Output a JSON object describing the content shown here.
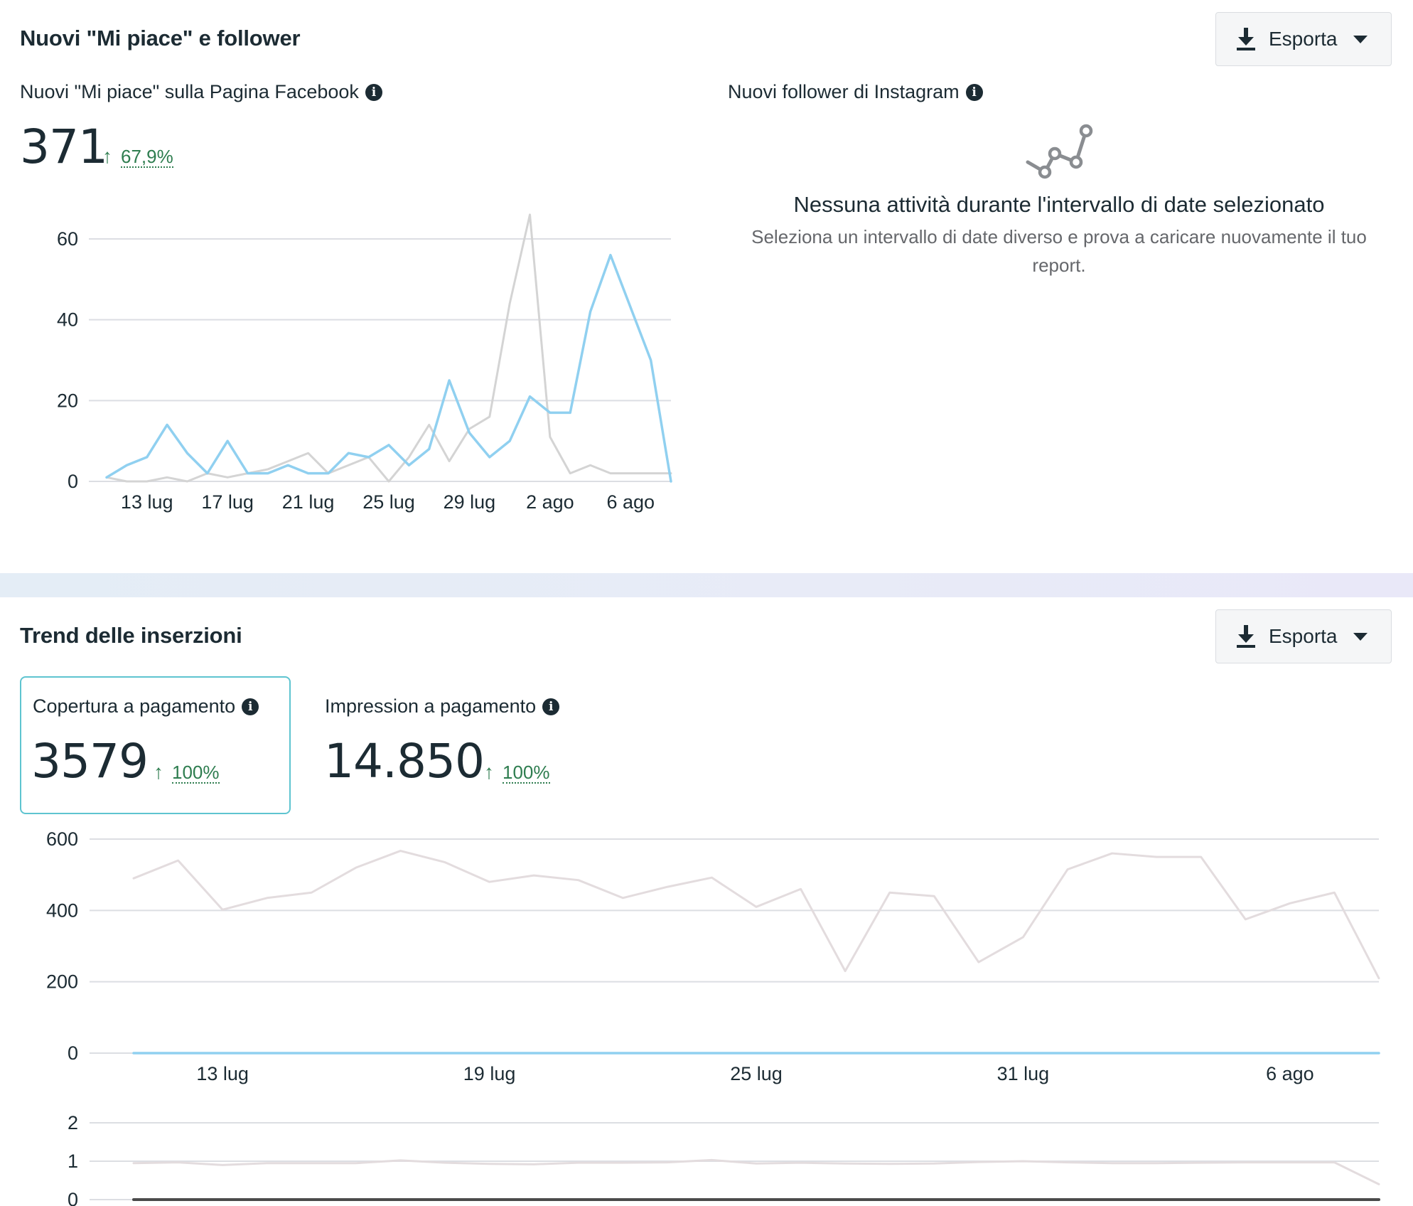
{
  "likes_section": {
    "title": "Nuovi \"Mi piace\" e follower",
    "export_label": "Esporta",
    "facebook": {
      "label": "Nuovi \"Mi piace\" sulla Pagina Facebook",
      "value": "371",
      "delta": "67,9%"
    },
    "instagram": {
      "label": "Nuovi follower di Instagram",
      "empty_title": "Nessuna attività durante l'intervallo di date selezionato",
      "empty_subtitle": "Seleziona un intervallo di date diverso e prova a caricare nuovamente il tuo report."
    }
  },
  "ads_section": {
    "title": "Trend delle inserzioni",
    "export_label": "Esporta",
    "reach": {
      "label": "Copertura a pagamento",
      "value": "3579",
      "delta": "100%"
    },
    "impressions": {
      "label": "Impression a pagamento",
      "value": "14.850",
      "delta": "100%"
    }
  },
  "colors": {
    "current": "#90d0f0",
    "previous": "#d4d4d4",
    "previous_ads": "#e3dcde",
    "accent_up": "#2e7d4f",
    "selected_border": "#5ec4d0"
  },
  "chart_data": [
    {
      "type": "line",
      "x": [
        11,
        12,
        13,
        14,
        15,
        16,
        17,
        18,
        19,
        20,
        21,
        22,
        23,
        24,
        25,
        26,
        27,
        28,
        29,
        30,
        31,
        32,
        33,
        34,
        35,
        36,
        37,
        38,
        39
      ],
      "xticks": [
        {
          "x": 13,
          "label": "13 lug"
        },
        {
          "x": 17,
          "label": "17 lug"
        },
        {
          "x": 21,
          "label": "21 lug"
        },
        {
          "x": 25,
          "label": "25 lug"
        },
        {
          "x": 29,
          "label": "29 lug"
        },
        {
          "x": 33,
          "label": "2 ago"
        },
        {
          "x": 37,
          "label": "6 ago"
        }
      ],
      "yticks": [
        0,
        20,
        40,
        60
      ],
      "ylim": [
        0,
        60
      ],
      "series": [
        {
          "color": "#d4d4d4",
          "values": [
            1,
            0,
            0,
            1,
            0,
            2,
            1,
            2,
            3,
            5,
            7,
            2,
            4,
            6,
            0,
            6,
            14,
            5,
            13,
            16,
            44,
            66,
            11,
            2,
            4,
            2,
            2,
            2,
            2
          ]
        },
        {
          "color": "#90d0f0",
          "values": [
            1,
            4,
            6,
            14,
            7,
            2,
            10,
            2,
            2,
            4,
            2,
            2,
            7,
            6,
            9,
            4,
            8,
            25,
            12,
            6,
            10,
            21,
            17,
            17,
            42,
            56,
            43,
            30,
            0
          ]
        }
      ],
      "grid": true
    },
    {
      "type": "line",
      "x": [
        10,
        11,
        12,
        13,
        14,
        15,
        16,
        17,
        18,
        19,
        20,
        21,
        22,
        23,
        24,
        25,
        26,
        27,
        28,
        29,
        30,
        31,
        32,
        33,
        34,
        35,
        36,
        37,
        38
      ],
      "xticks": [
        {
          "x": 12,
          "label": "13 lug"
        },
        {
          "x": 18,
          "label": "19 lug"
        },
        {
          "x": 24,
          "label": "25 lug"
        },
        {
          "x": 30,
          "label": "31 lug"
        },
        {
          "x": 36,
          "label": "6 ago"
        }
      ],
      "yticks": [
        0,
        200,
        400,
        600
      ],
      "ylim": [
        0,
        600
      ],
      "series": [
        {
          "color": "#e3dcde",
          "values": [
            490,
            540,
            402,
            435,
            450,
            520,
            567,
            535,
            480,
            498,
            485,
            435,
            466,
            492,
            410,
            460,
            230,
            450,
            440,
            255,
            325,
            515,
            560,
            550,
            550,
            375,
            420,
            450,
            210
          ]
        },
        {
          "color": "#90d0f0",
          "values": [
            0,
            0,
            0,
            0,
            0,
            0,
            0,
            0,
            0,
            0,
            0,
            0,
            0,
            0,
            0,
            0,
            0,
            0,
            0,
            0,
            0,
            0,
            0,
            0,
            0,
            0,
            0,
            0,
            0
          ]
        }
      ],
      "grid": true
    },
    {
      "type": "line",
      "x": [
        10,
        11,
        12,
        13,
        14,
        15,
        16,
        17,
        18,
        19,
        20,
        21,
        22,
        23,
        24,
        25,
        26,
        27,
        28,
        29,
        30,
        31,
        32,
        33,
        34,
        35,
        36,
        37,
        38
      ],
      "yticks": [
        0,
        1,
        2
      ],
      "ylim": [
        0,
        2
      ],
      "series": [
        {
          "color": "#e3dcde",
          "values": [
            0.95,
            0.97,
            0.9,
            0.95,
            0.95,
            0.95,
            1.02,
            0.96,
            0.93,
            0.92,
            0.96,
            0.96,
            0.97,
            1.03,
            0.94,
            0.96,
            0.94,
            0.93,
            0.94,
            0.98,
            1.0,
            0.97,
            0.95,
            0.95,
            0.96,
            0.97,
            0.97,
            0.97,
            0.4
          ]
        },
        {
          "color": "#4a4a4a",
          "values": [
            0,
            0,
            0,
            0,
            0,
            0,
            0,
            0,
            0,
            0,
            0,
            0,
            0,
            0,
            0,
            0,
            0,
            0,
            0,
            0,
            0,
            0,
            0,
            0,
            0,
            0,
            0,
            0,
            0
          ]
        }
      ],
      "grid": true
    }
  ]
}
